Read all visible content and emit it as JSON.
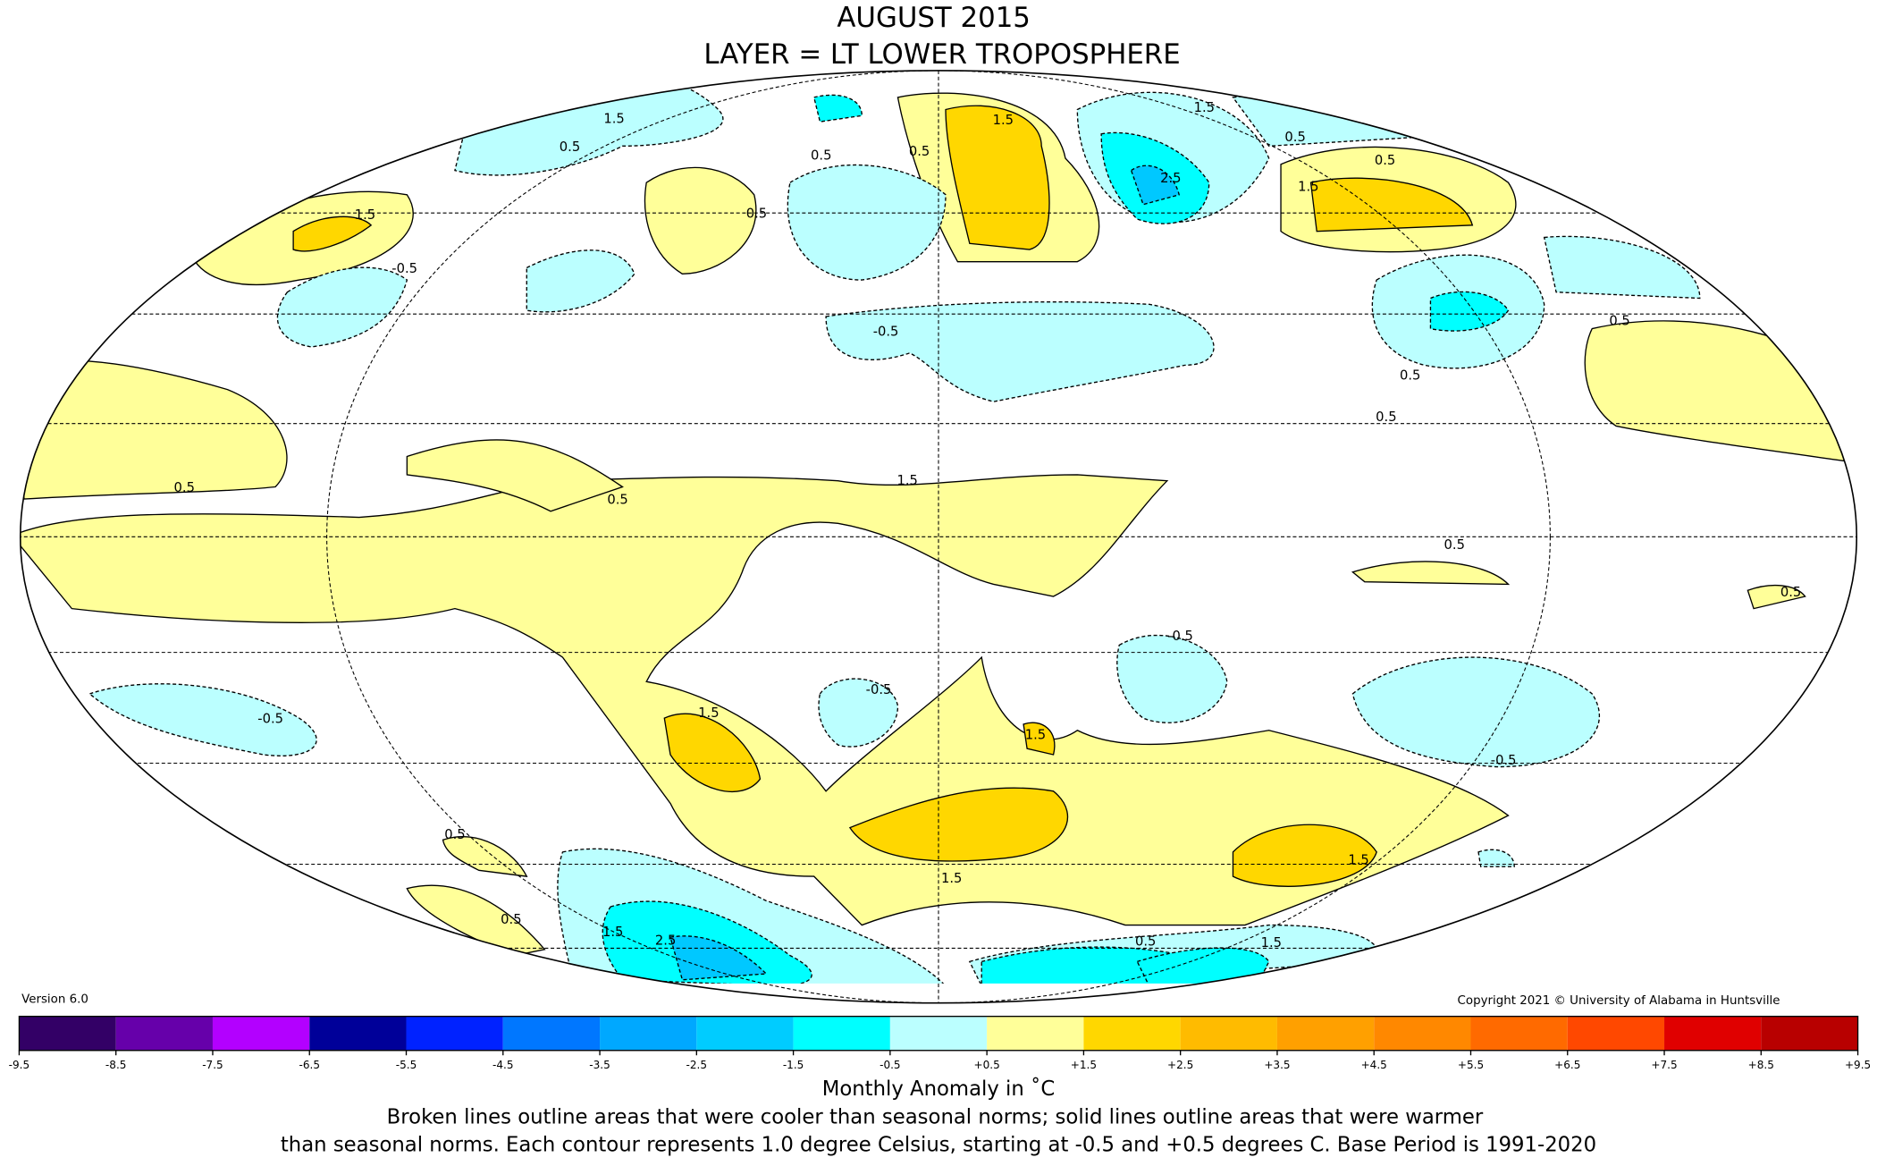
{
  "title": [
    "AUGUST 2015",
    "LAYER = LT LOWER TROPOSPHERE"
  ],
  "map": {
    "contour_labels": [
      "1.5",
      "0.5",
      "0.5",
      "0.5",
      "1.5",
      "0.5",
      "1.5",
      "0.5",
      "0.5",
      "1.5",
      "2.5",
      "1.5",
      "-0.5",
      "0.5",
      "-0.5",
      "0.5",
      "0.5",
      "0.5",
      "0.5",
      "1.5",
      "0.5",
      "0.5",
      "-0.5",
      "-0.5",
      "-0.5",
      "1.5",
      "1.5",
      "-0.5",
      "0.5",
      "1.5",
      "1.5",
      "0.5",
      "1.5",
      "2.5",
      "0.5",
      "1.5"
    ]
  },
  "version": "Version 6.0",
  "copyright": "Copyright 2021 © University of Alabama in Huntsville",
  "colorbar": {
    "colors": [
      "#330066",
      "#6600aa",
      "#b300ff",
      "#000099",
      "#0022ff",
      "#0077ff",
      "#00a8ff",
      "#00ccff",
      "#00ffff",
      "#bbffff",
      "#ffffff",
      "#ffff99",
      "#ffd700",
      "#ffbb00",
      "#ffa000",
      "#ff8800",
      "#ff6a00",
      "#ff4800",
      "#e00000",
      "#b80000"
    ],
    "ticks": [
      -9.5,
      -8.5,
      -7.5,
      -6.5,
      -5.5,
      -4.5,
      -3.5,
      -2.5,
      -1.5,
      -0.5,
      {
        "value": 0.5,
        "label": "+0.5"
      },
      {
        "value": 1.5,
        "label": "+1.5"
      },
      {
        "value": 2.5,
        "label": "+2.5"
      },
      {
        "value": 3.5,
        "label": "+3.5"
      },
      {
        "value": 4.5,
        "label": "+4.5"
      },
      {
        "value": 5.5,
        "label": "+5.5"
      },
      {
        "value": 6.5,
        "label": "+6.5"
      },
      {
        "value": 7.5,
        "label": "+7.5"
      },
      {
        "value": 8.5,
        "label": "+8.5"
      },
      {
        "value": 9.5,
        "label": "+9.5"
      }
    ]
  },
  "caption": {
    "axis_label": "Monthly Anomaly in ˚C",
    "notes": [
      "Broken lines outline areas that were cooler than seasonal norms; solid lines outline areas that were warmer",
      "than seasonal norms. Each contour represents 1.0 degree Celsius, starting at -0.5 and +0.5 degrees C. Base Period is 1991-2020"
    ]
  }
}
